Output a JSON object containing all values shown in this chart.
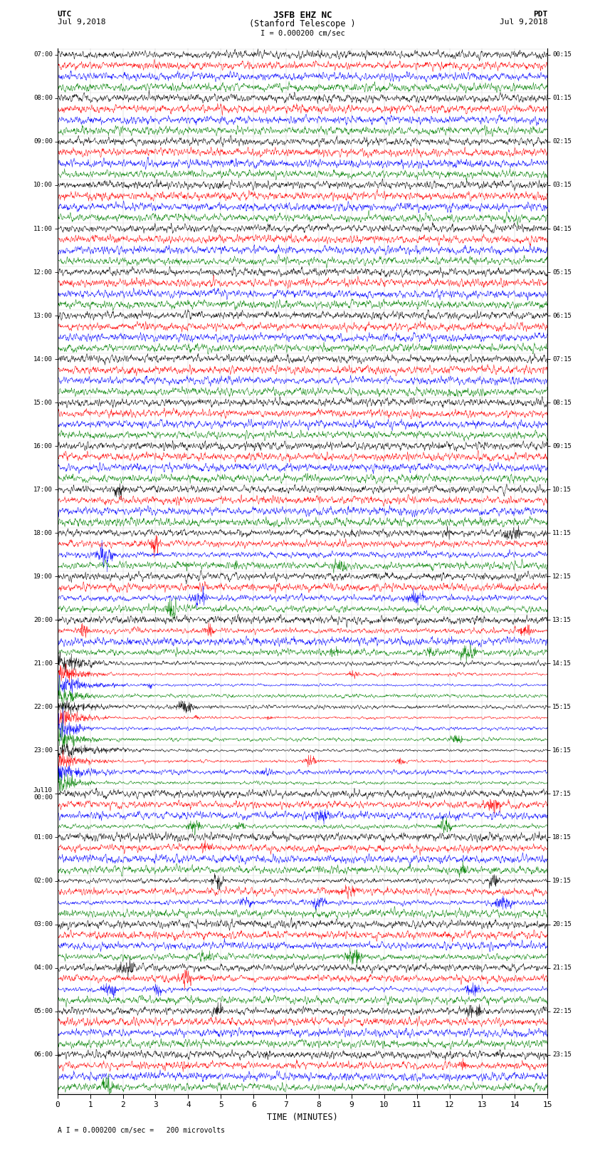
{
  "title_line1": "JSFB EHZ NC",
  "title_line2": "(Stanford Telescope )",
  "scale_label": "I = 0.000200 cm/sec",
  "footer": "A I = 0.000200 cm/sec =   200 microvolts",
  "utc_label": "UTC",
  "utc_date": "Jul 9,2018",
  "pdt_label": "PDT",
  "pdt_date": "Jul 9,2018",
  "xlabel": "TIME (MINUTES)",
  "xlim": [
    0,
    15
  ],
  "xticks": [
    0,
    1,
    2,
    3,
    4,
    5,
    6,
    7,
    8,
    9,
    10,
    11,
    12,
    13,
    14,
    15
  ],
  "colors": [
    "black",
    "red",
    "blue",
    "green"
  ],
  "n_groups": 24,
  "traces_per_group": 4,
  "bg_color": "#ffffff",
  "utc_times": [
    "07:00",
    "08:00",
    "09:00",
    "10:00",
    "11:00",
    "12:00",
    "13:00",
    "14:00",
    "15:00",
    "16:00",
    "17:00",
    "18:00",
    "19:00",
    "20:00",
    "21:00",
    "22:00",
    "23:00",
    "Jul10\n00:00",
    "01:00",
    "02:00",
    "03:00",
    "04:00",
    "05:00",
    "06:00"
  ],
  "pdt_times": [
    "00:15",
    "01:15",
    "02:15",
    "03:15",
    "04:15",
    "05:15",
    "06:15",
    "07:15",
    "08:15",
    "09:15",
    "10:15",
    "11:15",
    "12:15",
    "13:15",
    "14:15",
    "15:15",
    "16:15",
    "17:15",
    "18:15",
    "19:15",
    "20:15",
    "21:15",
    "22:15",
    "23:15"
  ]
}
